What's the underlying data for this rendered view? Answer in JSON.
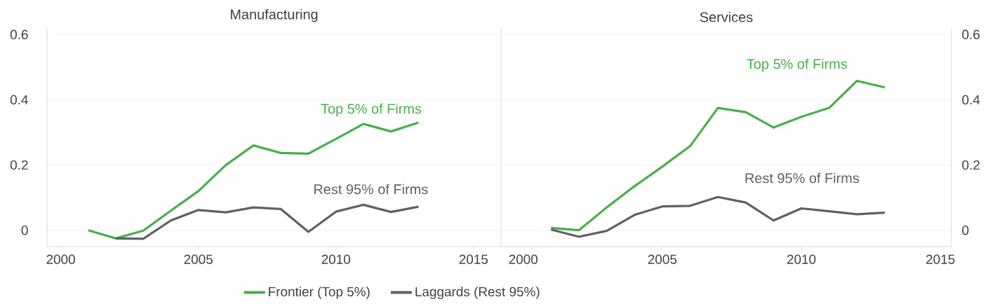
{
  "chart_data": [
    {
      "type": "line",
      "title": "Manufacturing",
      "xlim": [
        1999.5,
        2016
      ],
      "xticks": [
        2000,
        2005,
        2010,
        2015
      ],
      "ylim": [
        -0.05,
        0.62
      ],
      "yticks": [
        0,
        0.2,
        0.4,
        0.6
      ],
      "grid": "y",
      "legend": "bottom",
      "series": [
        {
          "name": "Frontier (Top 5%)",
          "color": "#46b04a",
          "x": [
            2001,
            2002,
            2003,
            2004,
            2005,
            2006,
            2007,
            2008,
            2009,
            2010,
            2011,
            2012,
            2013
          ],
          "values": [
            0.0,
            -0.025,
            -0.001,
            0.06,
            0.12,
            0.2,
            0.26,
            0.237,
            0.235,
            0.28,
            0.326,
            0.303,
            0.33
          ]
        },
        {
          "name": "Laggards (Rest 95%)",
          "color": "#5f6068",
          "x": [
            2002,
            2003,
            2004,
            2005,
            2006,
            2007,
            2008,
            2009,
            2010,
            2011,
            2012,
            2013
          ],
          "values": [
            -0.025,
            -0.026,
            0.03,
            0.062,
            0.055,
            0.07,
            0.065,
            -0.005,
            0.057,
            0.078,
            0.056,
            0.072
          ]
        }
      ],
      "annotations": [
        "Top 5% of Firms",
        "Rest 95% of Firms"
      ]
    },
    {
      "type": "line",
      "title": "Services",
      "xlim": [
        1999.2,
        2015.4
      ],
      "xticks": [
        2000,
        2005,
        2010,
        2015
      ],
      "ylim": [
        -0.05,
        0.62
      ],
      "yticks": [
        0,
        0.2,
        0.4,
        0.6
      ],
      "grid": "y",
      "series": [
        {
          "color": "#46b04a",
          "x": [
            2001,
            2002,
            2003,
            2004,
            2005,
            2006,
            2007,
            2008,
            2009,
            2010,
            2011,
            2012,
            2013
          ],
          "values": [
            0.007,
            0.0,
            0.07,
            0.135,
            0.195,
            0.258,
            0.375,
            0.362,
            0.315,
            0.348,
            0.375,
            0.458,
            0.438
          ]
        },
        {
          "color": "#5f6068",
          "x": [
            2001,
            2002,
            2003,
            2004,
            2005,
            2006,
            2007,
            2008,
            2009,
            2010,
            2011,
            2012,
            2013
          ],
          "values": [
            0.002,
            -0.02,
            -0.002,
            0.047,
            0.073,
            0.075,
            0.102,
            0.085,
            0.03,
            0.067,
            0.058,
            0.049,
            0.054
          ]
        }
      ],
      "annotations": [
        "Top 5% of Firms",
        "Rest 95% of Firms"
      ]
    }
  ]
}
